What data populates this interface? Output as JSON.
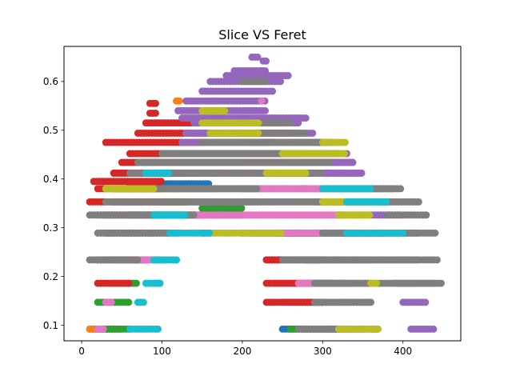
{
  "chart_data": {
    "type": "scatter",
    "title": "Slice VS Feret",
    "xlabel": "",
    "ylabel": "",
    "xlim": [
      -22,
      472
    ],
    "ylim": [
      0.068,
      0.672
    ],
    "x_ticks": [
      0,
      100,
      200,
      300,
      400
    ],
    "y_ticks": [
      0.1,
      0.2,
      0.3,
      0.4,
      0.5,
      0.6
    ],
    "y_tick_labels": [
      "0.1",
      "0.2",
      "0.3",
      "0.4",
      "0.5",
      "0.6"
    ],
    "grid": false,
    "legend": "none",
    "marker_step": 3.5,
    "series": [
      {
        "color": "#1f77b4",
        "bands": [
          [
            0.092,
            10,
            50
          ],
          [
            0.092,
            250,
            320
          ],
          [
            0.147,
            250,
            300
          ],
          [
            0.186,
            240,
            310
          ],
          [
            0.234,
            230,
            320
          ],
          [
            0.289,
            220,
            340
          ],
          [
            0.326,
            30,
            120
          ],
          [
            0.353,
            40,
            150
          ],
          [
            0.39,
            60,
            160
          ],
          [
            0.412,
            70,
            220
          ],
          [
            0.434,
            120,
            250
          ]
        ]
      },
      {
        "color": "#ff7f0e",
        "bands": [
          [
            0.092,
            10,
            40
          ],
          [
            0.092,
            300,
            330
          ],
          [
            0.147,
            300,
            360
          ],
          [
            0.186,
            280,
            360
          ],
          [
            0.234,
            300,
            360
          ],
          [
            0.289,
            300,
            380
          ],
          [
            0.353,
            40,
            170
          ],
          [
            0.38,
            50,
            170
          ],
          [
            0.56,
            118,
            122
          ],
          [
            0.475,
            200,
            250
          ]
        ]
      },
      {
        "color": "#2ca02c",
        "bands": [
          [
            0.092,
            20,
            60
          ],
          [
            0.092,
            260,
            330
          ],
          [
            0.147,
            20,
            60
          ],
          [
            0.186,
            40,
            70
          ],
          [
            0.234,
            40,
            100
          ],
          [
            0.289,
            200,
            300
          ],
          [
            0.326,
            60,
            200
          ],
          [
            0.34,
            150,
            200
          ],
          [
            0.353,
            100,
            220
          ],
          [
            0.38,
            40,
            160
          ],
          [
            0.412,
            40,
            130
          ]
        ]
      },
      {
        "color": "#d62728",
        "bands": [
          [
            0.147,
            230,
            300
          ],
          [
            0.186,
            20,
            60
          ],
          [
            0.186,
            230,
            330
          ],
          [
            0.234,
            20,
            80
          ],
          [
            0.234,
            230,
            330
          ],
          [
            0.289,
            30,
            110
          ],
          [
            0.289,
            240,
            340
          ],
          [
            0.326,
            20,
            150
          ],
          [
            0.353,
            10,
            130
          ],
          [
            0.38,
            20,
            100
          ],
          [
            0.395,
            15,
            100
          ],
          [
            0.412,
            40,
            350
          ],
          [
            0.434,
            50,
            340
          ],
          [
            0.452,
            60,
            320
          ],
          [
            0.475,
            30,
            310
          ],
          [
            0.494,
            70,
            270
          ],
          [
            0.515,
            80,
            260
          ],
          [
            0.535,
            85,
            95
          ],
          [
            0.555,
            85,
            95
          ]
        ]
      },
      {
        "color": "#9467bd",
        "bands": [
          [
            0.092,
            410,
            440
          ],
          [
            0.147,
            400,
            430
          ],
          [
            0.186,
            390,
            440
          ],
          [
            0.234,
            20,
            80
          ],
          [
            0.234,
            330,
            420
          ],
          [
            0.289,
            30,
            90
          ],
          [
            0.289,
            340,
            420
          ],
          [
            0.326,
            320,
            400
          ],
          [
            0.353,
            290,
            420
          ],
          [
            0.38,
            200,
            390
          ],
          [
            0.412,
            100,
            350
          ],
          [
            0.434,
            110,
            340
          ],
          [
            0.452,
            120,
            330
          ],
          [
            0.475,
            125,
            320
          ],
          [
            0.494,
            130,
            290
          ],
          [
            0.515,
            140,
            270
          ],
          [
            0.525,
            125,
            280
          ],
          [
            0.54,
            120,
            230
          ],
          [
            0.56,
            130,
            230
          ],
          [
            0.58,
            150,
            240
          ],
          [
            0.6,
            160,
            250
          ],
          [
            0.612,
            180,
            260
          ],
          [
            0.65,
            212,
            222
          ],
          [
            0.642,
            226,
            232
          ],
          [
            0.622,
            190,
            230
          ]
        ]
      },
      {
        "color": "#8c564b",
        "bands": [
          [
            0.186,
            90,
            100
          ],
          [
            0.234,
            280,
            300
          ]
        ]
      },
      {
        "color": "#e377c2",
        "bands": [
          [
            0.092,
            20,
            30
          ],
          [
            0.092,
            330,
            370
          ],
          [
            0.147,
            30,
            40
          ],
          [
            0.186,
            270,
            350
          ],
          [
            0.234,
            50,
            100
          ],
          [
            0.234,
            300,
            360
          ],
          [
            0.289,
            200,
            340
          ],
          [
            0.326,
            100,
            330
          ],
          [
            0.353,
            150,
            350
          ],
          [
            0.38,
            160,
            320
          ],
          [
            0.412,
            170,
            280
          ],
          [
            0.434,
            200,
            260
          ],
          [
            0.475,
            240,
            260
          ],
          [
            0.56,
            224,
            226
          ]
        ]
      },
      {
        "color": "#7f7f7f",
        "bands": [
          [
            0.092,
            270,
            370
          ],
          [
            0.147,
            290,
            360
          ],
          [
            0.186,
            290,
            450
          ],
          [
            0.234,
            10,
            70
          ],
          [
            0.234,
            250,
            445
          ],
          [
            0.289,
            20,
            120
          ],
          [
            0.289,
            300,
            440
          ],
          [
            0.326,
            10,
            140
          ],
          [
            0.326,
            380,
            430
          ],
          [
            0.353,
            30,
            330
          ],
          [
            0.353,
            370,
            420
          ],
          [
            0.38,
            50,
            220
          ],
          [
            0.38,
            320,
            400
          ],
          [
            0.412,
            60,
            300
          ],
          [
            0.434,
            70,
            310
          ],
          [
            0.452,
            100,
            280
          ],
          [
            0.475,
            150,
            300
          ],
          [
            0.494,
            200,
            280
          ],
          [
            0.515,
            210,
            260
          ],
          [
            0.6,
            200,
            230
          ]
        ]
      },
      {
        "color": "#bcbd22",
        "bands": [
          [
            0.092,
            320,
            370
          ],
          [
            0.186,
            360,
            370
          ],
          [
            0.289,
            150,
            250
          ],
          [
            0.289,
            340,
            370
          ],
          [
            0.326,
            320,
            360
          ],
          [
            0.353,
            300,
            360
          ],
          [
            0.38,
            30,
            90
          ],
          [
            0.412,
            230,
            280
          ],
          [
            0.452,
            250,
            330
          ],
          [
            0.475,
            300,
            330
          ],
          [
            0.494,
            160,
            220
          ],
          [
            0.515,
            150,
            220
          ],
          [
            0.54,
            150,
            180
          ]
        ]
      },
      {
        "color": "#17becf",
        "bands": [
          [
            0.092,
            60,
            95
          ],
          [
            0.147,
            70,
            80
          ],
          [
            0.186,
            80,
            100
          ],
          [
            0.234,
            90,
            120
          ],
          [
            0.289,
            110,
            160
          ],
          [
            0.289,
            330,
            400
          ],
          [
            0.326,
            90,
            130
          ],
          [
            0.353,
            330,
            380
          ],
          [
            0.38,
            300,
            360
          ],
          [
            0.412,
            80,
            110
          ]
        ]
      }
    ]
  }
}
